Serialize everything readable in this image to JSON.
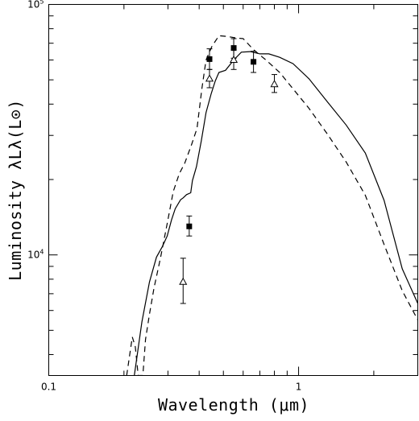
{
  "chart_data": {
    "type": "scatter",
    "xscale": "log",
    "yscale": "log",
    "xlim": [
      0.1,
      3.0
    ],
    "ylim": [
      3300,
      100000
    ],
    "xlabel": "Wavelength (μm)",
    "ylabel": "Luminosity λLλ(L⊙)",
    "x_ticks": [
      {
        "value": 0.1,
        "label": "0.1"
      },
      {
        "value": 1,
        "label": "1"
      }
    ],
    "y_ticks": [
      {
        "value": 10000,
        "label": "10",
        "exp": "4"
      },
      {
        "value": 100000,
        "label": "10",
        "exp": "5"
      }
    ],
    "grid": false,
    "series": [
      {
        "kind": "line",
        "style": "solid",
        "points": [
          [
            0.22,
            3300
          ],
          [
            0.236,
            5400
          ],
          [
            0.253,
            7800
          ],
          [
            0.27,
            9800
          ],
          [
            0.285,
            10800
          ],
          [
            0.298,
            11900
          ],
          [
            0.31,
            13800
          ],
          [
            0.321,
            15300
          ],
          [
            0.337,
            16600
          ],
          [
            0.345,
            16900
          ],
          [
            0.356,
            17400
          ],
          [
            0.37,
            17700
          ],
          [
            0.376,
            19800
          ],
          [
            0.39,
            22500
          ],
          [
            0.408,
            28500
          ],
          [
            0.426,
            37000
          ],
          [
            0.447,
            44000
          ],
          [
            0.464,
            49500
          ],
          [
            0.48,
            53500
          ],
          [
            0.51,
            54600
          ],
          [
            0.55,
            60000
          ],
          [
            0.59,
            64500
          ],
          [
            0.64,
            64800
          ],
          [
            0.7,
            63500
          ],
          [
            0.76,
            63500
          ],
          [
            0.84,
            61500
          ],
          [
            0.95,
            58000
          ],
          [
            1.1,
            50500
          ],
          [
            1.3,
            41000
          ],
          [
            1.55,
            33000
          ],
          [
            1.85,
            25500
          ],
          [
            2.2,
            16500
          ],
          [
            2.6,
            8800
          ],
          [
            3.0,
            6400
          ]
        ]
      },
      {
        "kind": "line",
        "style": "dashed",
        "points": [
          [
            0.205,
            3300
          ],
          [
            0.216,
            4700
          ],
          [
            0.222,
            4300
          ],
          [
            0.228,
            3300
          ],
          [
            0.238,
            3300
          ],
          [
            0.244,
            4600
          ],
          [
            0.253,
            5800
          ],
          [
            0.264,
            7400
          ],
          [
            0.28,
            9700
          ],
          [
            0.3,
            13800
          ],
          [
            0.315,
            17900
          ],
          [
            0.333,
            21100
          ],
          [
            0.35,
            23200
          ],
          [
            0.373,
            27600
          ],
          [
            0.392,
            32000
          ],
          [
            0.41,
            46000
          ],
          [
            0.426,
            60000
          ],
          [
            0.45,
            68000
          ],
          [
            0.48,
            75000
          ],
          [
            0.52,
            74500
          ],
          [
            0.56,
            73500
          ],
          [
            0.6,
            73000
          ],
          [
            0.66,
            66000
          ],
          [
            0.74,
            60000
          ],
          [
            0.84,
            53500
          ],
          [
            0.95,
            46000
          ],
          [
            1.1,
            38500
          ],
          [
            1.3,
            30500
          ],
          [
            1.55,
            23500
          ],
          [
            1.85,
            17300
          ],
          [
            2.2,
            11000
          ],
          [
            2.6,
            7200
          ],
          [
            3.0,
            5500
          ]
        ]
      },
      {
        "kind": "points",
        "marker": "filled-square",
        "points": [
          {
            "x": 0.365,
            "y": 13000,
            "ylo": 11900,
            "yhi": 14300
          },
          {
            "x": 0.44,
            "y": 60500,
            "ylo": 55000,
            "yhi": 66500
          },
          {
            "x": 0.55,
            "y": 67000,
            "ylo": 61000,
            "yhi": 73000
          },
          {
            "x": 0.66,
            "y": 59000,
            "ylo": 53500,
            "yhi": 65000
          }
        ]
      },
      {
        "kind": "points",
        "marker": "open-triangle",
        "points": [
          {
            "x": 0.345,
            "y": 7800,
            "ylo": 6400,
            "yhi": 9700
          },
          {
            "x": 0.44,
            "y": 50500,
            "ylo": 46500,
            "yhi": 55000
          },
          {
            "x": 0.55,
            "y": 60000,
            "ylo": 55000,
            "yhi": 66000
          },
          {
            "x": 0.8,
            "y": 48000,
            "ylo": 44500,
            "yhi": 52500
          }
        ]
      }
    ]
  }
}
